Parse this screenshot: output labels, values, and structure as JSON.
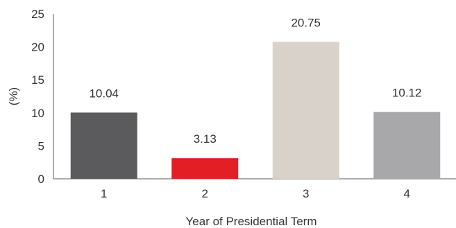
{
  "chart_data": {
    "type": "bar",
    "title": "",
    "xlabel": "Year of Presidential Term",
    "ylabel": "(%)",
    "categories": [
      "1",
      "2",
      "3",
      "4"
    ],
    "values": [
      10.04,
      3.13,
      20.75,
      10.12
    ],
    "value_labels": [
      "10.04",
      "3.13",
      "20.75",
      "10.12"
    ],
    "bar_colors": [
      "#5b5b5d",
      "#e31e24",
      "#d9d2ca",
      "#a8a8aa"
    ],
    "ylim": [
      0,
      25
    ],
    "yticks": [
      "0",
      "5",
      "10",
      "15",
      "20",
      "25"
    ],
    "grid": false,
    "legend": "none"
  }
}
